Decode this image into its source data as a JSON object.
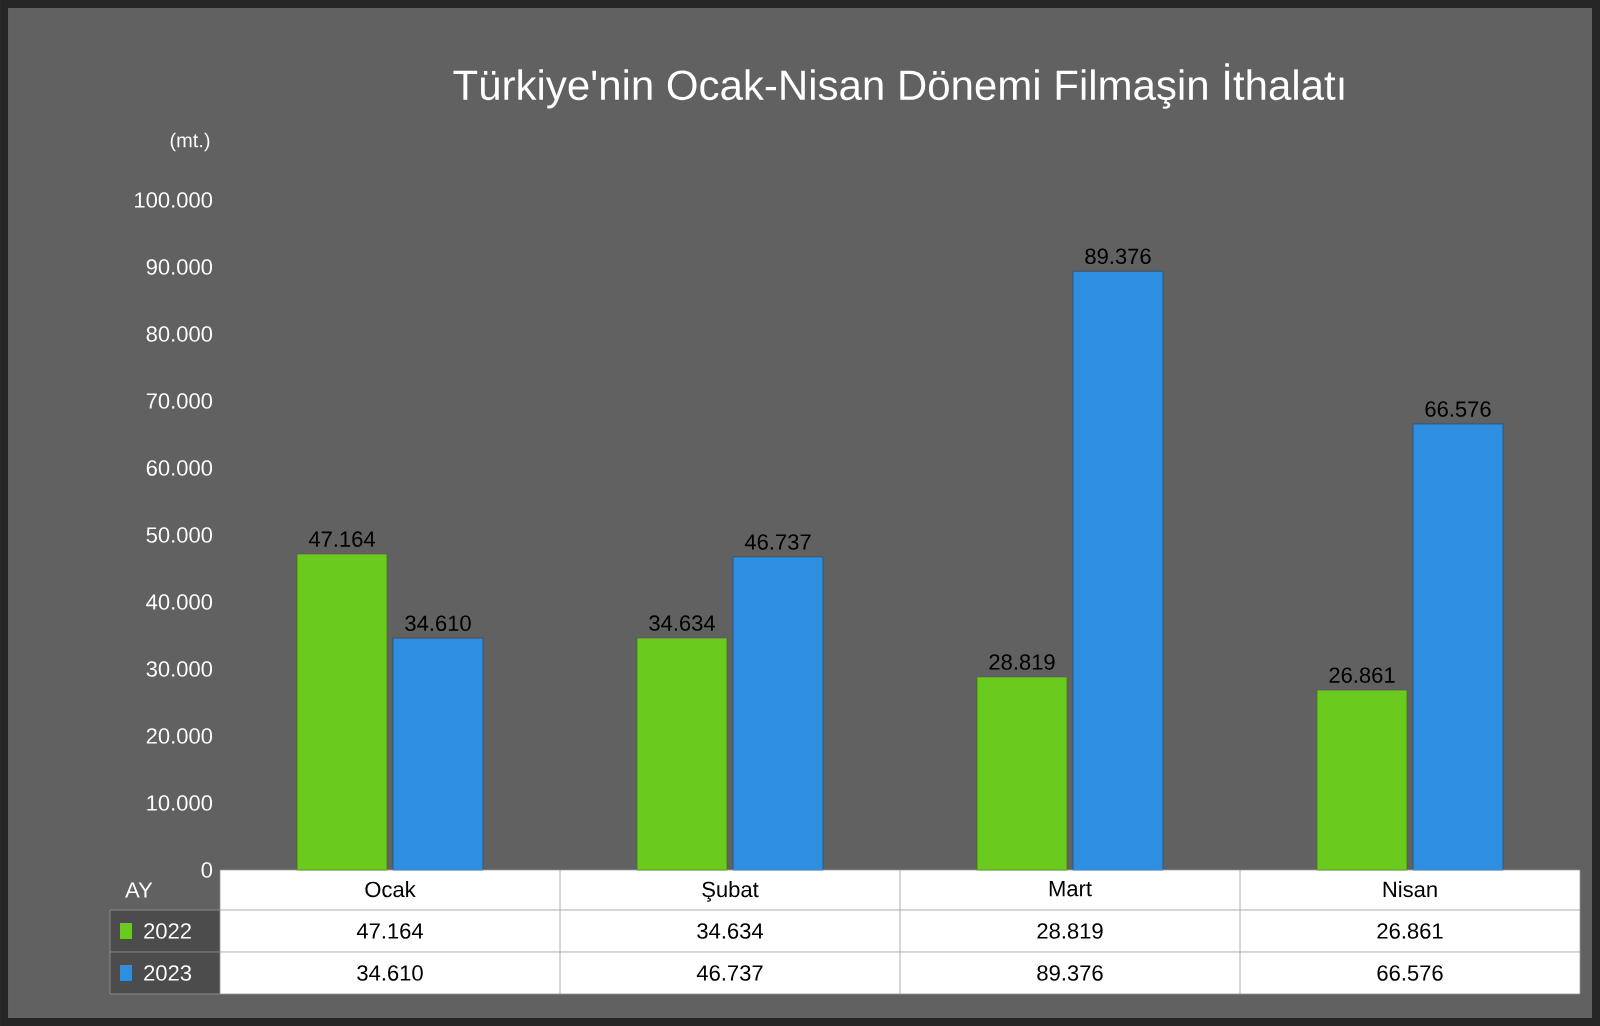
{
  "chart_data": {
    "type": "bar",
    "title": "Türkiye'nin Ocak-Nisan Dönemi Filmaşin İthalatı",
    "ylabel": "(mt.)",
    "xlabel": "AY",
    "categories": [
      "Ocak",
      "Şubat",
      "Mart",
      "Nisan"
    ],
    "series": [
      {
        "name": "2022",
        "color": "#6acb1e",
        "values": [
          47164,
          34634,
          28819,
          26861
        ],
        "value_labels": [
          "47.164",
          "34.634",
          "28.819",
          "26.861"
        ]
      },
      {
        "name": "2023",
        "color": "#2e8ee0",
        "values": [
          34610,
          46737,
          89376,
          66576
        ],
        "value_labels": [
          "34.610",
          "46.737",
          "89.376",
          "66.576"
        ]
      }
    ],
    "ylim": [
      0,
      100000
    ],
    "yticks": [
      0,
      {
        "value": 10000,
        "label": "10.000"
      },
      {
        "value": 20000,
        "label": "20.000"
      },
      {
        "value": 30000,
        "label": "30.000"
      },
      {
        "value": 40000,
        "label": "40.000"
      },
      {
        "value": 50000,
        "label": "50.000"
      },
      {
        "value": 60000,
        "label": "60.000"
      },
      {
        "value": 70000,
        "label": "70.000"
      },
      {
        "value": 80000,
        "label": "80.000"
      },
      {
        "value": 90000,
        "label": "90.000"
      },
      {
        "value": 100000,
        "label": "100.000"
      }
    ],
    "legend": "bottom"
  }
}
